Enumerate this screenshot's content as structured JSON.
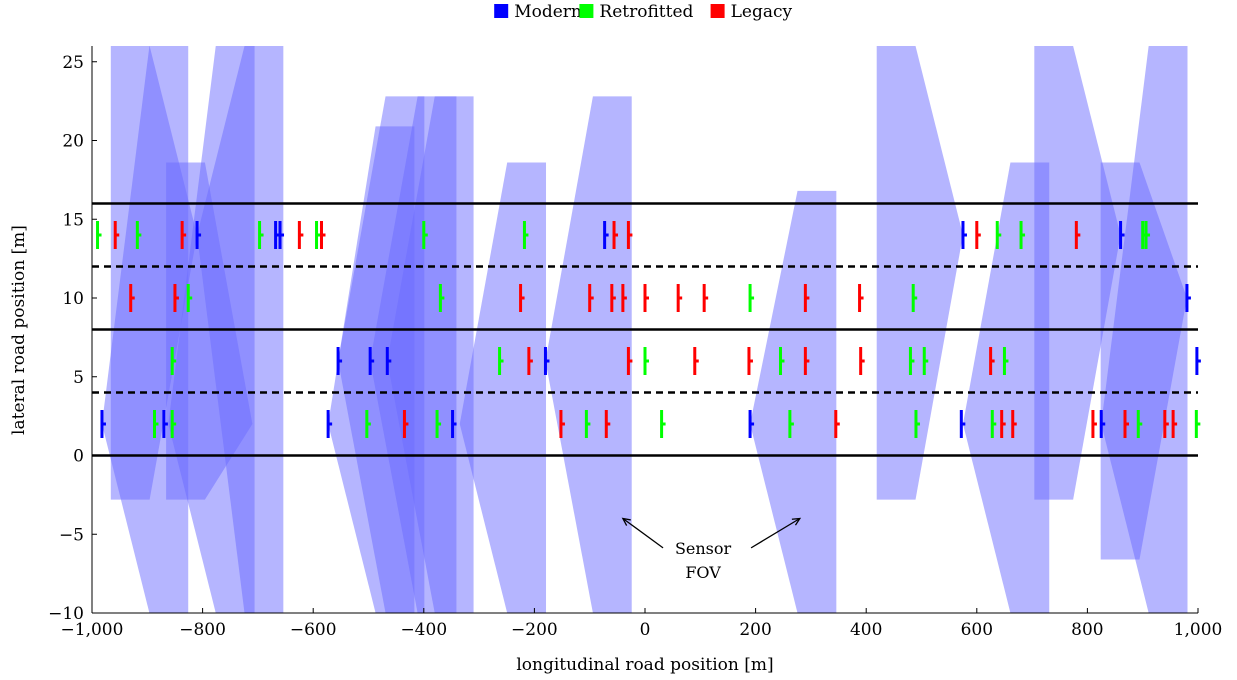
{
  "chart_data": {
    "type": "scatter",
    "xlabel": "longitudinal road position [m]",
    "ylabel": "lateral road position [m]",
    "xlim": [
      -1000,
      1000
    ],
    "ylim": [
      -10,
      26
    ],
    "xticks": [
      -1000,
      -800,
      -600,
      -400,
      -200,
      0,
      200,
      400,
      600,
      800,
      1000
    ],
    "xtick_labels": [
      "−1,000",
      "−800",
      "−600",
      "−400",
      "−200",
      "0",
      "200",
      "400",
      "600",
      "800",
      "1,000"
    ],
    "yticks": [
      -10,
      -5,
      0,
      5,
      10,
      15,
      20,
      25
    ],
    "ytick_labels": [
      "−10",
      "−5",
      "0",
      "5",
      "10",
      "15",
      "20",
      "25"
    ],
    "grid": false,
    "legend": {
      "placement": "top-center",
      "entries": [
        {
          "name": "Modern",
          "color": "#0000ff"
        },
        {
          "name": "Retrofitted",
          "color": "#00ff00"
        },
        {
          "name": "Legacy",
          "color": "#ff0000"
        }
      ]
    },
    "lane_lines": [
      {
        "y": 0,
        "style": "solid"
      },
      {
        "y": 4,
        "style": "dashed"
      },
      {
        "y": 8,
        "style": "solid"
      },
      {
        "y": 12,
        "style": "dashed"
      },
      {
        "y": 16,
        "style": "solid"
      }
    ],
    "fov_color": "#6b6bff",
    "fov_wedges": [
      {
        "x_sensor": -982,
        "y_sensor": 2,
        "x_far": -826,
        "direction": "forward",
        "y_top": 26,
        "y_bottom": -10
      },
      {
        "x_sensor": -862,
        "y_sensor": 2,
        "x_far": -706,
        "direction": "forward",
        "y_top": 26,
        "y_bottom": -10
      },
      {
        "x_sensor": -810,
        "y_sensor": 14,
        "x_far": -966,
        "direction": "backward",
        "y_top": 26,
        "y_bottom": -2.8
      },
      {
        "x_sensor": -810,
        "y_sensor": 14,
        "x_far": -654,
        "direction": "forward",
        "y_top": 26,
        "y_bottom": -10
      },
      {
        "x_sensor": -710,
        "y_sensor": 2,
        "x_far": -866,
        "direction": "backward",
        "y_top": 18.6,
        "y_bottom": -2.8
      },
      {
        "x_sensor": -573,
        "y_sensor": 2,
        "x_far": -417,
        "direction": "forward",
        "y_top": 20.9,
        "y_bottom": -10
      },
      {
        "x_sensor": -555,
        "y_sensor": 6,
        "x_far": -399,
        "direction": "forward",
        "y_top": 22.8,
        "y_bottom": -10
      },
      {
        "x_sensor": -497,
        "y_sensor": 6,
        "x_far": -341,
        "direction": "forward",
        "y_top": 22.8,
        "y_bottom": -10
      },
      {
        "x_sensor": -466,
        "y_sensor": 6,
        "x_far": -310,
        "direction": "forward",
        "y_top": 22.8,
        "y_bottom": -10
      },
      {
        "x_sensor": -335,
        "y_sensor": 2,
        "x_far": -179,
        "direction": "forward",
        "y_top": 18.6,
        "y_bottom": -10
      },
      {
        "x_sensor": -180,
        "y_sensor": 6,
        "x_far": -24,
        "direction": "forward",
        "y_top": 22.8,
        "y_bottom": -10
      },
      {
        "x_sensor": -226,
        "y_sensor": 10,
        "x_far": -226,
        "direction": "backward",
        "y_top": 26,
        "y_bottom": -2.8
      },
      {
        "x_sensor": 190,
        "y_sensor": 2,
        "x_far": 346,
        "direction": "forward",
        "y_top": 16.8,
        "y_bottom": -10
      },
      {
        "x_sensor": 575,
        "y_sensor": 14,
        "x_far": 419,
        "direction": "backward",
        "y_top": 26,
        "y_bottom": -2.8
      },
      {
        "x_sensor": 575,
        "y_sensor": 2,
        "x_far": 731,
        "direction": "forward",
        "y_top": 18.6,
        "y_bottom": -10
      },
      {
        "x_sensor": 860,
        "y_sensor": 14,
        "x_far": 704,
        "direction": "backward",
        "y_top": 26,
        "y_bottom": -2.8
      },
      {
        "x_sensor": 825,
        "y_sensor": 2,
        "x_far": 981,
        "direction": "forward",
        "y_top": 26,
        "y_bottom": -10
      },
      {
        "x_sensor": 980,
        "y_sensor": 10,
        "x_far": 824,
        "direction": "backward",
        "y_top": 18.6,
        "y_bottom": -6.6
      }
    ],
    "series": [
      {
        "name": "Modern",
        "color": "#0000ff",
        "points": [
          {
            "x": -810,
            "y": 14
          },
          {
            "x": -668,
            "y": 14
          },
          {
            "x": -660,
            "y": 14
          },
          {
            "x": -73,
            "y": 14
          },
          {
            "x": 575,
            "y": 14
          },
          {
            "x": 860,
            "y": 14
          },
          {
            "x": 980,
            "y": 10
          },
          {
            "x": -555,
            "y": 6
          },
          {
            "x": -497,
            "y": 6
          },
          {
            "x": -466,
            "y": 6
          },
          {
            "x": -180,
            "y": 6
          },
          {
            "x": 998,
            "y": 6
          },
          {
            "x": -982,
            "y": 2
          },
          {
            "x": -870,
            "y": 2
          },
          {
            "x": -573,
            "y": 2
          },
          {
            "x": -348,
            "y": 2
          },
          {
            "x": 190,
            "y": 2
          },
          {
            "x": 572,
            "y": 2
          },
          {
            "x": 825,
            "y": 2
          }
        ]
      },
      {
        "name": "Retrofitted",
        "color": "#00ff00",
        "points": [
          {
            "x": -990,
            "y": 14
          },
          {
            "x": -918,
            "y": 14
          },
          {
            "x": -697,
            "y": 14
          },
          {
            "x": -594,
            "y": 14
          },
          {
            "x": -400,
            "y": 14
          },
          {
            "x": -218,
            "y": 14
          },
          {
            "x": 637,
            "y": 14
          },
          {
            "x": 680,
            "y": 14
          },
          {
            "x": 900,
            "y": 14
          },
          {
            "x": 906,
            "y": 14
          },
          {
            "x": -826,
            "y": 10
          },
          {
            "x": -370,
            "y": 10
          },
          {
            "x": 190,
            "y": 10
          },
          {
            "x": 485,
            "y": 10
          },
          {
            "x": -855,
            "y": 6
          },
          {
            "x": -263,
            "y": 6
          },
          {
            "x": 0,
            "y": 6
          },
          {
            "x": 245,
            "y": 6
          },
          {
            "x": 480,
            "y": 6
          },
          {
            "x": 505,
            "y": 6
          },
          {
            "x": 650,
            "y": 6
          },
          {
            "x": -887,
            "y": 2
          },
          {
            "x": -855,
            "y": 2
          },
          {
            "x": -503,
            "y": 2
          },
          {
            "x": -376,
            "y": 2
          },
          {
            "x": -106,
            "y": 2
          },
          {
            "x": 30,
            "y": 2
          },
          {
            "x": 262,
            "y": 2
          },
          {
            "x": 490,
            "y": 2
          },
          {
            "x": 628,
            "y": 2
          },
          {
            "x": 892,
            "y": 2
          },
          {
            "x": 997,
            "y": 2
          }
        ]
      },
      {
        "name": "Legacy",
        "color": "#ff0000",
        "points": [
          {
            "x": -958,
            "y": 14
          },
          {
            "x": -837,
            "y": 14
          },
          {
            "x": -625,
            "y": 14
          },
          {
            "x": -585,
            "y": 14
          },
          {
            "x": -56,
            "y": 14
          },
          {
            "x": -30,
            "y": 14
          },
          {
            "x": 600,
            "y": 14
          },
          {
            "x": 780,
            "y": 14
          },
          {
            "x": -930,
            "y": 10
          },
          {
            "x": -850,
            "y": 10
          },
          {
            "x": -225,
            "y": 10
          },
          {
            "x": -100,
            "y": 10
          },
          {
            "x": -60,
            "y": 10
          },
          {
            "x": -40,
            "y": 10
          },
          {
            "x": 0,
            "y": 10
          },
          {
            "x": 60,
            "y": 10
          },
          {
            "x": 107,
            "y": 10
          },
          {
            "x": 290,
            "y": 10
          },
          {
            "x": 388,
            "y": 10
          },
          {
            "x": -210,
            "y": 6
          },
          {
            "x": -30,
            "y": 6
          },
          {
            "x": 90,
            "y": 6
          },
          {
            "x": 188,
            "y": 6
          },
          {
            "x": 290,
            "y": 6
          },
          {
            "x": 390,
            "y": 6
          },
          {
            "x": 625,
            "y": 6
          },
          {
            "x": -435,
            "y": 2
          },
          {
            "x": -152,
            "y": 2
          },
          {
            "x": -70,
            "y": 2
          },
          {
            "x": 345,
            "y": 2
          },
          {
            "x": 645,
            "y": 2
          },
          {
            "x": 665,
            "y": 2
          },
          {
            "x": 810,
            "y": 2
          },
          {
            "x": 868,
            "y": 2
          },
          {
            "x": 940,
            "y": 2
          },
          {
            "x": 955,
            "y": 2
          }
        ]
      }
    ],
    "annotations": [
      {
        "text_lines": [
          "Sensor",
          "FOV"
        ],
        "anchor": {
          "x": 105,
          "y": -6.5
        },
        "arrows_to": [
          {
            "x": -40,
            "y": -4
          },
          {
            "x": 280,
            "y": -4
          }
        ]
      }
    ]
  }
}
